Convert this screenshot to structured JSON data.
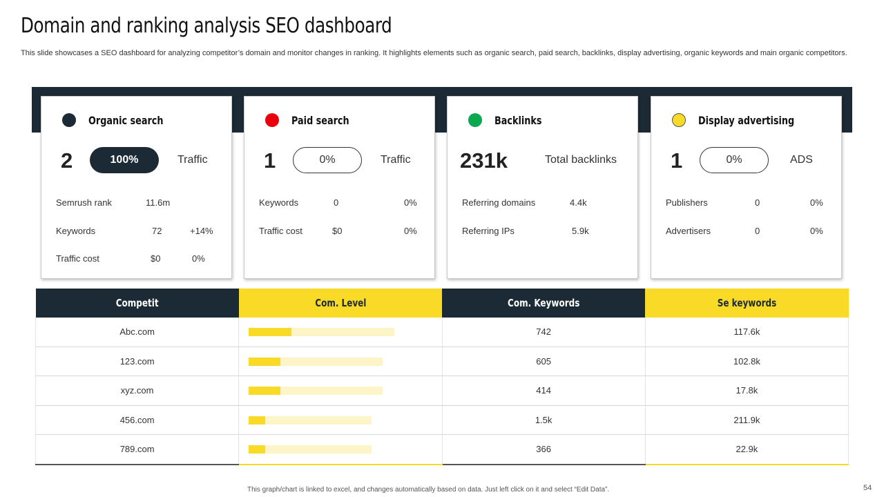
{
  "title": "Domain and ranking analysis SEO dashboard",
  "subtitle": "This slide showcases a SEO dashboard for analyzing competitor’s domain and monitor changes in ranking. It highlights elements such as organic search, paid search, backlinks, display advertising, organic keywords and main organic competitors.",
  "colors": {
    "dark": "#1c2a35",
    "yellow": "#f9da27",
    "red": "#e8000b",
    "green": "#0aa84f"
  },
  "cards": [
    {
      "title": "Organic search",
      "dot_color": "#1c2a35",
      "icon": "dark-circle-icon",
      "number": "2",
      "pill": "100%",
      "pill_style": "filled",
      "side_label": "Traffic",
      "rows": [
        {
          "label": "Semrush rank",
          "value": "11.6m",
          "change": ""
        },
        {
          "label": "Keywords",
          "value": "72",
          "change": "+14%"
        },
        {
          "label": "Traffic  cost",
          "value": "$0",
          "change": "0%"
        }
      ]
    },
    {
      "title": "Paid search",
      "dot_color": "#e8000b",
      "icon": "red-circle-icon",
      "number": "1",
      "pill": "0%",
      "pill_style": "outline",
      "side_label": "Traffic",
      "rows": [
        {
          "label": "Keywords",
          "value": "0",
          "change": "0%"
        },
        {
          "label": "Traffic  cost",
          "value": "$0",
          "change": "0%"
        }
      ]
    },
    {
      "title": "Backlinks",
      "dot_color": "#0aa84f",
      "icon": "green-circle-icon",
      "number": "231k",
      "side_label": "Total backlinks",
      "rows": [
        {
          "label": "Referring  domains",
          "value": "4.4k"
        },
        {
          "label": "Referring  IPs",
          "value": "5.9k"
        }
      ]
    },
    {
      "title": "Display advertising",
      "dot_color": "#f9da27",
      "icon": "yellow-circle-icon",
      "number": "1",
      "pill": "0%",
      "pill_style": "outline",
      "side_label": "ADS",
      "rows": [
        {
          "label": "Publishers",
          "value": "0",
          "change": "0%"
        },
        {
          "label": "Advertisers",
          "value": "0",
          "change": "0%"
        }
      ]
    }
  ],
  "table": {
    "headers": [
      "Competit",
      "Com. Level",
      "Com. Keywords",
      "Se keywords"
    ],
    "rows": [
      {
        "competitor": "Abc.com",
        "level_fraction": 0.23,
        "track_fraction": 0.78,
        "keywords": "742",
        "se_keywords": "117.6k"
      },
      {
        "competitor": "123.com",
        "level_fraction": 0.17,
        "track_fraction": 0.72,
        "keywords": "605",
        "se_keywords": "102.8k"
      },
      {
        "competitor": "xyz.com",
        "level_fraction": 0.17,
        "track_fraction": 0.72,
        "keywords": "414",
        "se_keywords": "17.8k"
      },
      {
        "competitor": "456.com",
        "level_fraction": 0.09,
        "track_fraction": 0.66,
        "keywords": "1.5k",
        "se_keywords": "211.9k"
      },
      {
        "competitor": "789.com",
        "level_fraction": 0.09,
        "track_fraction": 0.66,
        "keywords": "366",
        "se_keywords": "22.9k"
      }
    ]
  },
  "footer_note": "This graph/chart is linked to excel, and changes automatically based on data. Just left click on it and select “Edit Data”.",
  "page_number": "54"
}
